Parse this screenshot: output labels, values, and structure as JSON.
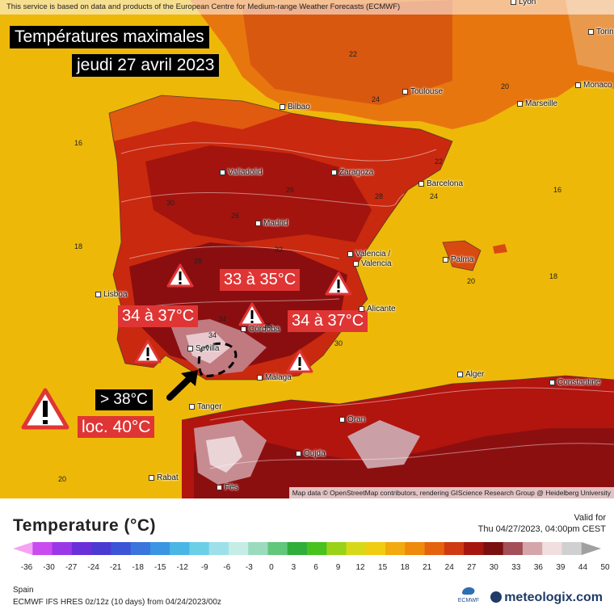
{
  "map": {
    "attribution_top": "This service is based on data and products of the European Centre for Medium-range Weather Forecasts (ECMWF)",
    "attribution_bottom": "Map data © OpenStreetMap contributors, rendering GIScience Research Group @ Heidelberg University",
    "title_line1": "Températures maximales",
    "title_line2": "jeudi 27 avril 2023",
    "annotations": {
      "center": "33 à 35°C",
      "west": "34 à 37°C",
      "east": "34 à 37°C",
      "gt38": "> 38°C",
      "loc40": "loc. 40°C"
    },
    "cities": [
      "Lyon",
      "Torino",
      "Monaco",
      "Toulouse",
      "Marseille",
      "Bilbao",
      "Valladolid",
      "Zaragoza",
      "Barcelona",
      "Madrid",
      "Valencia /",
      "Valencia",
      "Palma",
      "Lisboa",
      "Córdoba",
      "Alicante",
      "Sevilla",
      "Málaga",
      "Tanger",
      "Alger",
      "Constantine",
      "Oran",
      "Oujda",
      "Rabat",
      "Fès"
    ],
    "numbers": [
      "16",
      "18",
      "20",
      "22",
      "24",
      "26",
      "28",
      "30",
      "32",
      "34",
      "36"
    ]
  },
  "legend": {
    "title": "Temperature (°C)",
    "valid_label": "Valid for",
    "valid_date": "Thu 04/27/2023, 04:00pm CEST",
    "ticks": [
      "-36",
      "-30",
      "-27",
      "-24",
      "-21",
      "-18",
      "-15",
      "-12",
      "-9",
      "-6",
      "-3",
      "0",
      "3",
      "6",
      "9",
      "12",
      "15",
      "18",
      "21",
      "24",
      "27",
      "30",
      "33",
      "36",
      "39",
      "44",
      "50"
    ],
    "region": "Spain",
    "model": "ECMWF IFS HRES 0z/12z (10 days) from 04/24/2023/00z",
    "brand": "meteologix.com",
    "ecmwf": "ECMWF",
    "colors": [
      "#f5a3f5",
      "#c84cf0",
      "#9a38e8",
      "#6a2fd8",
      "#4a3ad2",
      "#3b55d6",
      "#3a74dc",
      "#3a95e2",
      "#4ab6e6",
      "#6ccfe8",
      "#9ee0ea",
      "#c5ede6",
      "#9bdbbd",
      "#61c77a",
      "#2fae3a",
      "#47c21e",
      "#9ad21a",
      "#d8d81a",
      "#f0cc12",
      "#f2aa0e",
      "#ef8a0c",
      "#e5620f",
      "#cf3a12",
      "#a6160e",
      "#7a0f10",
      "#a44e57",
      "#d4a6aa",
      "#f1dede",
      "#d0d0d0",
      "#a0a0a0"
    ]
  }
}
